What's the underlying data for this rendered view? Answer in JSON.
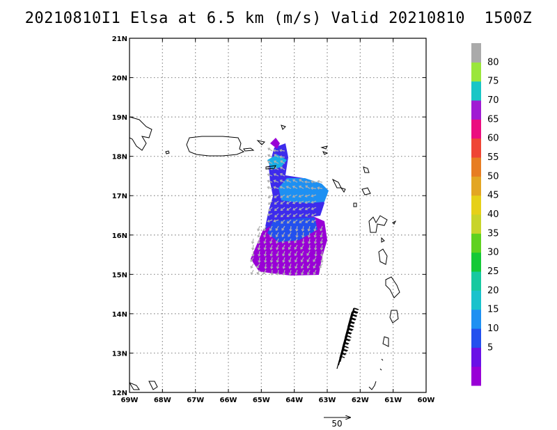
{
  "title": "20210810I1 Elsa at 6.5 km (m/s) Valid 20210810  1500Z",
  "map": {
    "lon_range": [
      -69,
      -60
    ],
    "lat_range": [
      12,
      21
    ],
    "lon_labels": [
      "69W",
      "68W",
      "67W",
      "66W",
      "65W",
      "64W",
      "63W",
      "62W",
      "61W",
      "60W"
    ],
    "lat_labels": [
      "12N",
      "13N",
      "14N",
      "15N",
      "16N",
      "17N",
      "18N",
      "19N",
      "20N",
      "21N"
    ],
    "grid": true
  },
  "colorbar": {
    "labels": [
      "5",
      "10",
      "15",
      "20",
      "25",
      "30",
      "35",
      "40",
      "45",
      "50",
      "55",
      "60",
      "65",
      "70",
      "75",
      "80"
    ],
    "colors": [
      "#9900d6",
      "#6a11e6",
      "#2350ee",
      "#1e90f2",
      "#19c2cc",
      "#17c9a0",
      "#14c937",
      "#5fd11f",
      "#c8d42a",
      "#e6d018",
      "#e3a623",
      "#e77d22",
      "#ef4535",
      "#eb0d7f",
      "#a01bd3",
      "#19c6c6",
      "#9ae63c",
      "#aaaaaa"
    ]
  },
  "reference_vector": {
    "label": "50",
    "value": 50
  },
  "wind_field": {
    "regions": [
      {
        "name": "core-purple",
        "color": "#9900d6"
      },
      {
        "name": "mid-blue",
        "color": "#2350ee"
      },
      {
        "name": "north-cyan",
        "color": "#1e90f2"
      }
    ],
    "vector_color": "#b0b0b0",
    "sonde_color": "#000000"
  }
}
